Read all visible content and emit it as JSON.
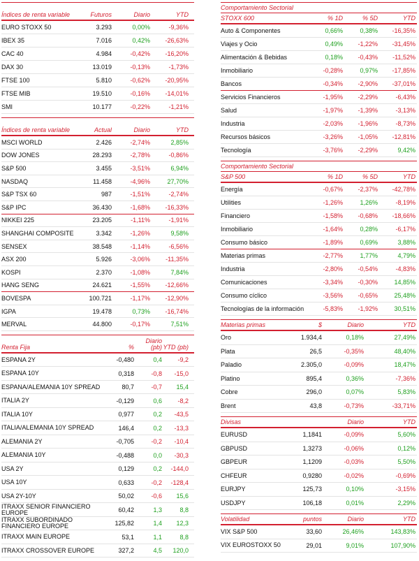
{
  "futuros": {
    "headers": [
      "Índices de renta variable",
      "Futuros",
      "Diario",
      "YTD"
    ],
    "rows": [
      [
        "EURO STOXX 50",
        "3.293",
        "0,00%",
        "-9,36%"
      ],
      [
        "IBEX 35",
        "7.016",
        "0,42%",
        "-26,63%"
      ],
      [
        "CAC 40",
        "4.984",
        "-0,42%",
        "-16,20%"
      ],
      [
        "DAX 30",
        "13.019",
        "-0,13%",
        "-1,73%"
      ],
      [
        "FTSE 100",
        "5.810",
        "-0,62%",
        "-20,95%"
      ],
      [
        "FTSE MIB",
        "19.510",
        "-0,16%",
        "-14,01%"
      ],
      [
        "SMI",
        "10.177",
        "-0,22%",
        "-1,21%"
      ]
    ]
  },
  "actual": {
    "headers": [
      "Índices de renta variable",
      "Actual",
      "Diario",
      "YTD"
    ],
    "rows": [
      [
        "MSCI WORLD",
        "2.426",
        "-2,74%",
        "2,85%"
      ],
      [
        "DOW JONES",
        "28.293",
        "-2,78%",
        "-0,86%"
      ],
      [
        "S&P 500",
        "3.455",
        "-3,51%",
        "6,94%"
      ],
      [
        "NASDAQ",
        "11.458",
        "-4,96%",
        "27,70%"
      ],
      [
        "S&P TSX 60",
        "987",
        "-1,51%",
        "-2,74%"
      ],
      [
        "S&P IPC",
        "36.430",
        "-1,68%",
        "-16,33%"
      ],
      [
        "NIKKEI 225",
        "23.205",
        "-1,11%",
        "-1,91%"
      ],
      [
        "SHANGHAI COMPOSITE",
        "3.342",
        "-1,26%",
        "9,58%"
      ],
      [
        "SENSEX",
        "38.548",
        "-1,14%",
        "-6,56%"
      ],
      [
        "ASX 200",
        "5.926",
        "-3,06%",
        "-11,35%"
      ],
      [
        "KOSPI",
        "2.370",
        "-1,08%",
        "7,84%"
      ],
      [
        "HANG SENG",
        "24.621",
        "-1,55%",
        "-12,66%"
      ],
      [
        "BOVESPA",
        "100.721",
        "-1,17%",
        "-12,90%"
      ],
      [
        "IGPA",
        "19.478",
        "0,73%",
        "-16,74%"
      ],
      [
        "MERVAL",
        "44.800",
        "-0,17%",
        "7,51%"
      ]
    ]
  },
  "renta_fija": {
    "headers": [
      "Renta Fija",
      "%",
      "Diario (pb)",
      "YTD (pb)"
    ],
    "rows": [
      [
        "ESPAÑA 2Y",
        "-0,480",
        "0,4",
        "-9,2"
      ],
      [
        "ESPAÑA 10Y",
        "0,318",
        "-0,8",
        "-15,0"
      ],
      [
        "ESPAÑA/ALEMANIA 10Y SPREAD",
        "80,7",
        "-0,7",
        "15,4"
      ],
      [
        "ITALIA 2Y",
        "-0,129",
        "0,6",
        "-8,2"
      ],
      [
        "ITALIA 10Y",
        "0,977",
        "0,2",
        "-43,5"
      ],
      [
        "ITALIA/ALEMANIA 10Y SPREAD",
        "146,4",
        "0,2",
        "-13,3"
      ],
      [
        "ALEMANIA 2Y",
        "-0,705",
        "-0,2",
        "-10,4"
      ],
      [
        "ALEMANIA 10Y",
        "-0,488",
        "0,0",
        "-30,3"
      ],
      [
        "USA 2Y",
        "0,129",
        "0,2",
        "-144,0"
      ],
      [
        "USA 10Y",
        "0,633",
        "-0,2",
        "-128,4"
      ],
      [
        "USA 2Y-10Y",
        "50,02",
        "-0,6",
        "15,6"
      ],
      [
        "ITRAXX SENIOR FINANCIERO EUROPE",
        "60,42",
        "1,3",
        "8,8"
      ],
      [
        "ITRAXX SUBORDINADO FINANCIERO EUROPE",
        "125,82",
        "1,4",
        "12,3"
      ],
      [
        "ITRAXX MAIN EUROPE",
        "53,1",
        "1,1",
        "8,8"
      ],
      [
        "ITRAXX CROSSOVER EUROPE",
        "327,2",
        "4,5",
        "120,0"
      ]
    ]
  },
  "sectorial_stoxx": {
    "title": "Comportamiento Sectorial",
    "headers": [
      "STOXX 600",
      "% 1D",
      "% 5D",
      "YTD"
    ],
    "rows": [
      [
        "Auto & Componentes",
        "0,66%",
        "0,38%",
        "-16,35%"
      ],
      [
        "Viajes y Ocio",
        "0,49%",
        "-1,22%",
        "-31,45%"
      ],
      [
        "Alimentación & Bebidas",
        "0,18%",
        "-0,43%",
        "-11,52%"
      ],
      [
        "Inmobiliario",
        "-0,28%",
        "0,97%",
        "-17,85%"
      ],
      [
        "Bancos",
        "-0,34%",
        "-2,90%",
        "-37,01%"
      ],
      [
        "Servicios Financieros",
        "-1,95%",
        "-2,29%",
        "-6,43%"
      ],
      [
        "Salud",
        "-1,97%",
        "-1,39%",
        "-3,13%"
      ],
      [
        "Industria",
        "-2,03%",
        "-1,96%",
        "-8,73%"
      ],
      [
        "Recursos básicos",
        "-3,26%",
        "-1,05%",
        "-12,81%"
      ],
      [
        "Tecnología",
        "-3,76%",
        "-2,29%",
        "9,42%"
      ]
    ]
  },
  "sectorial_sp": {
    "title": "Comportamiento Sectorial",
    "headers": [
      "S&P 500",
      "% 1D",
      "% 5D",
      "YTD"
    ],
    "rows": [
      [
        "Energía",
        "-0,67%",
        "-2,37%",
        "-42,78%"
      ],
      [
        "Utilities",
        "-1,26%",
        "1,26%",
        "-8,19%"
      ],
      [
        "Financiero",
        "-1,58%",
        "-0,68%",
        "-18,66%"
      ],
      [
        "Inmobiliario",
        "-1,64%",
        "0,28%",
        "-6,17%"
      ],
      [
        "Consumo básico",
        "-1,89%",
        "0,69%",
        "3,88%"
      ],
      [
        "Materias primas",
        "-2,77%",
        "1,77%",
        "4,79%"
      ],
      [
        "Industria",
        "-2,80%",
        "-0,54%",
        "-4,83%"
      ],
      [
        "Comunicaciones",
        "-3,34%",
        "-0,30%",
        "14,85%"
      ],
      [
        "Consumo cíclico",
        "-3,56%",
        "-0,65%",
        "25,48%"
      ],
      [
        "Tecnologías de la información",
        "-5,83%",
        "-1,92%",
        "30,51%"
      ]
    ]
  },
  "materias_primas": {
    "headers": [
      "Materias primas",
      "$",
      "Diario",
      "YTD"
    ],
    "rows": [
      [
        "Oro",
        "1.934,4",
        "0,18%",
        "27,49%"
      ],
      [
        "Plata",
        "26,5",
        "-0,35%",
        "48,40%"
      ],
      [
        "Paladio",
        "2.305,0",
        "-0,09%",
        "18,47%"
      ],
      [
        "Platino",
        "895,4",
        "0,36%",
        "-7,36%"
      ],
      [
        "Cobre",
        "296,0",
        "0,07%",
        "5,83%"
      ],
      [
        "Brent",
        "43,8",
        "-0,73%",
        "-33,71%"
      ]
    ]
  },
  "divisas": {
    "headers": [
      "Divisas",
      "",
      "Diario",
      "YTD"
    ],
    "rows": [
      [
        "EURUSD",
        "1,1841",
        "-0,09%",
        "5,60%"
      ],
      [
        "GBPUSD",
        "1,3273",
        "-0,06%",
        "0,12%"
      ],
      [
        "GBPEUR",
        "1,1209",
        "-0,03%",
        "5,50%"
      ],
      [
        "CHFEUR",
        "0,9280",
        "-0,02%",
        "-0,69%"
      ],
      [
        "EURJPY",
        "125,73",
        "0,10%",
        "-3,15%"
      ],
      [
        "USDJPY",
        "106,18",
        "0,01%",
        "2,29%"
      ]
    ]
  },
  "volatilidad": {
    "headers": [
      "Volatilidad",
      "puntos",
      "Diario",
      "YTD"
    ],
    "rows": [
      [
        "VIX S&P 500",
        "33,60",
        "26,46%",
        "143,83%"
      ],
      [
        "VIX EUROSTOXX 50",
        "29,01",
        "9,01%",
        "107,90%"
      ]
    ]
  },
  "colors": {
    "accent": "#d32030",
    "positive": "#1fa01f",
    "negative": "#d32030"
  }
}
